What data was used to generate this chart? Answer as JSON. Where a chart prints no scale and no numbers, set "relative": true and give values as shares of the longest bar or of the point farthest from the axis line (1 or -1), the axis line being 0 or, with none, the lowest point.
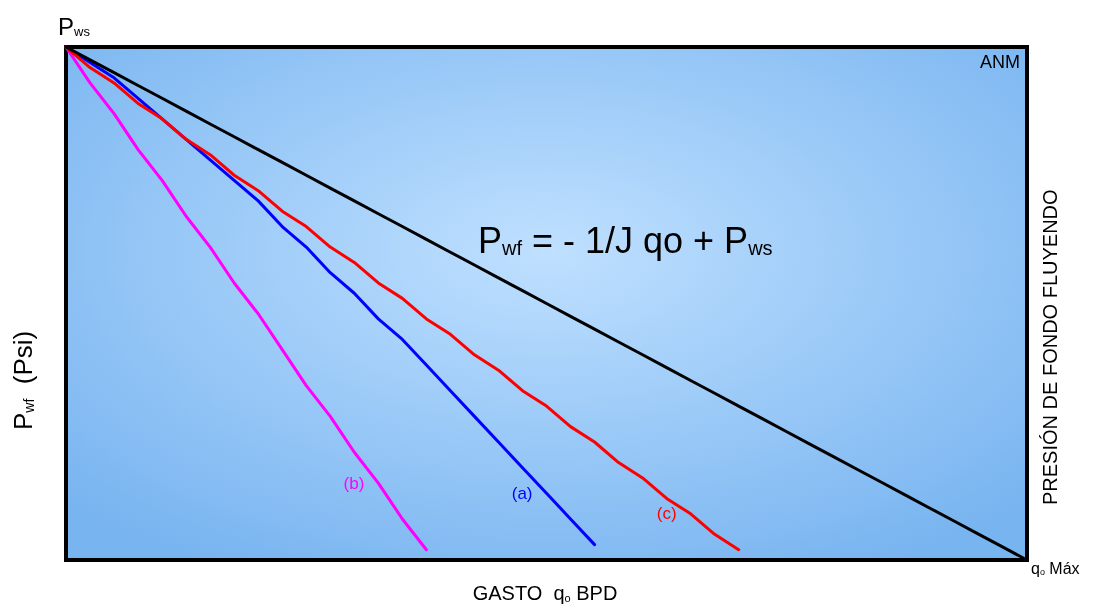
{
  "chart_data": {
    "type": "line",
    "relative": true,
    "xlabel": "GASTO  q$_{o}$ BPD",
    "ylabel": "P$_{wf}$  (Psi)",
    "y2label": "PRESIÓN DE FONDO FLUYENDO",
    "annotations": [
      "P$_{ws}$",
      "ANM",
      "P$_{wf}$ = - 1/J qo + P$_{ws}$",
      "q$_{o}$ Máx"
    ],
    "categories": [
      null,
      null,
      null,
      null,
      null,
      null,
      null,
      null,
      null,
      null,
      null,
      null,
      null,
      null,
      null,
      null,
      null,
      null,
      null,
      null,
      null,
      null,
      null,
      null,
      null,
      null,
      null,
      null,
      null,
      null,
      null,
      null,
      null,
      null,
      null,
      null,
      null,
      null,
      null,
      null,
      null
    ],
    "marker": "none",
    "line_style": "solid",
    "legend": false,
    "grid": false,
    "series": [
      {
        "name": "(a)",
        "color": "#0000ff",
        "values": [
          1,
          0.97,
          0.94,
          0.9,
          0.86,
          0.82,
          0.78,
          0.74,
          0.7,
          0.65,
          0.61,
          0.56,
          0.52,
          0.47,
          0.43,
          0.38,
          0.33,
          0.28,
          0.23,
          0.18,
          0.13,
          0.08,
          0.03,
          null,
          null,
          null,
          null,
          null,
          null,
          null,
          null,
          null,
          null,
          null,
          null,
          null,
          null,
          null,
          null,
          null,
          null
        ]
      },
      {
        "name": "(b)",
        "color": "#ff00ff",
        "values": [
          1,
          0.93,
          0.87,
          0.8,
          0.74,
          0.67,
          0.61,
          0.54,
          0.48,
          0.41,
          0.34,
          0.28,
          0.21,
          0.15,
          0.08,
          0.02,
          null,
          null,
          null,
          null,
          null,
          null,
          null,
          null,
          null,
          null,
          null,
          null,
          null,
          null,
          null,
          null,
          null,
          null,
          null,
          null,
          null,
          null,
          null,
          null,
          null
        ]
      },
      {
        "name": "(c)",
        "color": "#ff0000",
        "values": [
          1,
          0.96,
          0.93,
          0.89,
          0.86,
          0.82,
          0.79,
          0.75,
          0.72,
          0.68,
          0.65,
          0.61,
          0.58,
          0.54,
          0.51,
          0.47,
          0.44,
          0.4,
          0.37,
          0.33,
          0.3,
          0.26,
          0.23,
          0.19,
          0.16,
          0.12,
          0.09,
          0.05,
          0.02,
          null,
          null,
          null,
          null,
          null,
          null,
          null,
          null,
          null,
          null,
          null,
          null
        ]
      },
      {
        "color": "#000000",
        "values": [
          1,
          0.975,
          0.95,
          0.925,
          0.9,
          0.875,
          0.85,
          0.825,
          0.8,
          0.775,
          0.75,
          0.725,
          0.7,
          0.675,
          0.65,
          0.625,
          0.6,
          0.575,
          0.55,
          0.525,
          0.5,
          0.475,
          0.45,
          0.425,
          0.4,
          0.375,
          0.35,
          0.325,
          0.3,
          0.275,
          0.25,
          0.225,
          0.2,
          0.175,
          0.15,
          0.125,
          0.1,
          0.075,
          0.05,
          0.025,
          0
        ]
      }
    ]
  }
}
